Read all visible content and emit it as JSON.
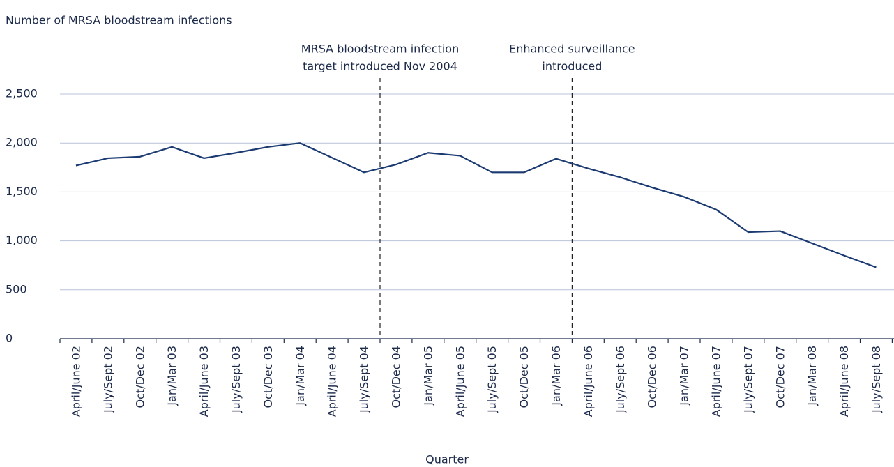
{
  "chart_data": {
    "type": "line",
    "y_label": "Number of MRSA bloodstream infections",
    "x_label": "Quarter",
    "categories": [
      "April/June 02",
      "July/Sept 02",
      "Oct/Dec 02",
      "Jan/Mar 03",
      "April/June 03",
      "July/Sept 03",
      "Oct/Dec 03",
      "Jan/Mar 04",
      "April/June 04",
      "July/Sept 04",
      "Oct/Dec 04",
      "Jan/Mar 05",
      "April/June 05",
      "July/Sept 05",
      "Oct/Dec 05",
      "Jan/Mar 06",
      "April/June 06",
      "July/Sept 06",
      "Oct/Dec 06",
      "Jan/Mar 07",
      "April/June 07",
      "July/Sept 07",
      "Oct/Dec 07",
      "Jan/Mar 08",
      "April/June 08",
      "July/Sept 08"
    ],
    "series": [
      {
        "name": "MRSA bloodstream infections",
        "color": "#1b3a72",
        "values": [
          1770,
          1845,
          1860,
          1960,
          1845,
          1900,
          1960,
          2000,
          1850,
          1700,
          1780,
          1900,
          1870,
          1700,
          1700,
          1840,
          1740,
          1650,
          1545,
          1450,
          1320,
          1090,
          1100,
          975,
          850,
          730
        ]
      }
    ],
    "ylim": [
      0,
      2500
    ],
    "yticks": [
      0,
      500,
      {
        "value": 1000,
        "label": "1,000"
      },
      {
        "value": 1500,
        "label": "1,500"
      },
      {
        "value": 2000,
        "label": "2,000"
      },
      {
        "value": 2500,
        "label": "2,500"
      }
    ],
    "grid": true,
    "annotations": [
      {
        "lines": [
          "MRSA bloodstream infection",
          "target introduced Nov 2004"
        ]
      },
      {
        "lines": [
          "Enhanced surveillance",
          "introduced"
        ]
      }
    ]
  }
}
